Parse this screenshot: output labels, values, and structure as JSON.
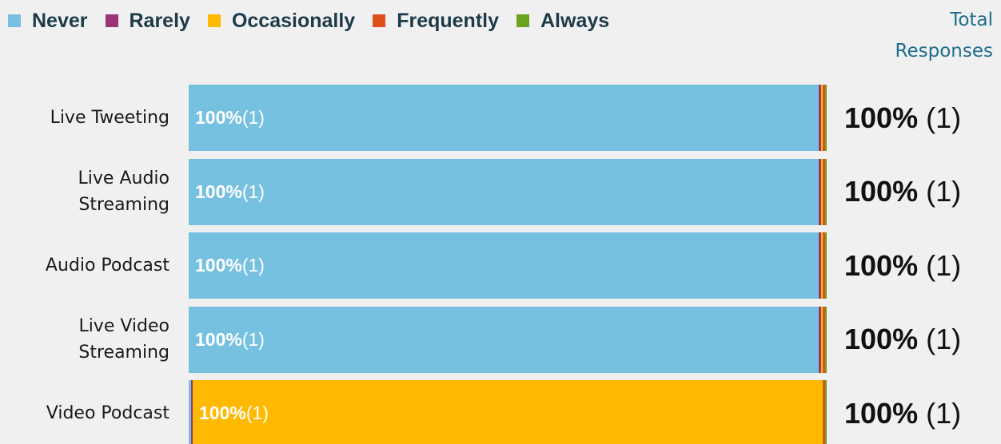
{
  "legend": [
    {
      "label": "Never",
      "color": "#76c0e0"
    },
    {
      "label": "Rarely",
      "color": "#9b3575"
    },
    {
      "label": "Occasionally",
      "color": "#ffb900"
    },
    {
      "label": "Frequently",
      "color": "#e0501c"
    },
    {
      "label": "Always",
      "color": "#6aa31f"
    }
  ],
  "total_header": {
    "line1": "Total",
    "line2": "Responses"
  },
  "chart_data": {
    "type": "bar",
    "orientation": "horizontal",
    "stacked": true,
    "categories": [
      "Live Tweeting",
      "Live Audio Streaming",
      "Audio Podcast",
      "Live Video Streaming",
      "Video Podcast"
    ],
    "category_lines": [
      [
        "Live Tweeting"
      ],
      [
        "Live Audio",
        "Streaming"
      ],
      [
        "Audio Podcast"
      ],
      [
        "Live Video",
        "Streaming"
      ],
      [
        "Video Podcast"
      ]
    ],
    "series": [
      {
        "name": "Never",
        "values": [
          100,
          100,
          100,
          100,
          0
        ],
        "counts": [
          1,
          1,
          1,
          1,
          0
        ]
      },
      {
        "name": "Rarely",
        "values": [
          0,
          0,
          0,
          0,
          0
        ],
        "counts": [
          0,
          0,
          0,
          0,
          0
        ]
      },
      {
        "name": "Occasionally",
        "values": [
          0,
          0,
          0,
          0,
          100
        ],
        "counts": [
          0,
          0,
          0,
          0,
          1
        ]
      },
      {
        "name": "Frequently",
        "values": [
          0,
          0,
          0,
          0,
          0
        ],
        "counts": [
          0,
          0,
          0,
          0,
          0
        ]
      },
      {
        "name": "Always",
        "values": [
          0,
          0,
          0,
          0,
          0
        ],
        "counts": [
          0,
          0,
          0,
          0,
          0
        ]
      }
    ],
    "xlim": [
      0,
      100
    ],
    "totals": {
      "percent": [
        "100%",
        "100%",
        "100%",
        "100%",
        "100%"
      ],
      "counts": [
        "(1)",
        "(1)",
        "(1)",
        "(1)",
        "(1)"
      ]
    }
  }
}
